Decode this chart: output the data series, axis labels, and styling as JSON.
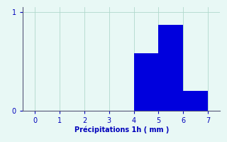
{
  "categories": [
    4.5,
    5.5,
    6.5
  ],
  "values": [
    0.58,
    0.87,
    0.2
  ],
  "bar_color": "#0000dd",
  "bar_width": 1.0,
  "xlabel": "Précipitations 1h ( mm )",
  "ylabel": "",
  "xlim": [
    -0.5,
    7.5
  ],
  "ylim": [
    0,
    1.05
  ],
  "xticks": [
    0,
    1,
    2,
    3,
    4,
    5,
    6,
    7
  ],
  "yticks": [
    0,
    1
  ],
  "background_color": "#e8f8f5",
  "grid_color": "#b0d8cc",
  "axis_color": "#555577",
  "tick_color": "#0000bb",
  "xlabel_color": "#0000bb",
  "xlabel_fontsize": 7,
  "tick_fontsize": 7
}
